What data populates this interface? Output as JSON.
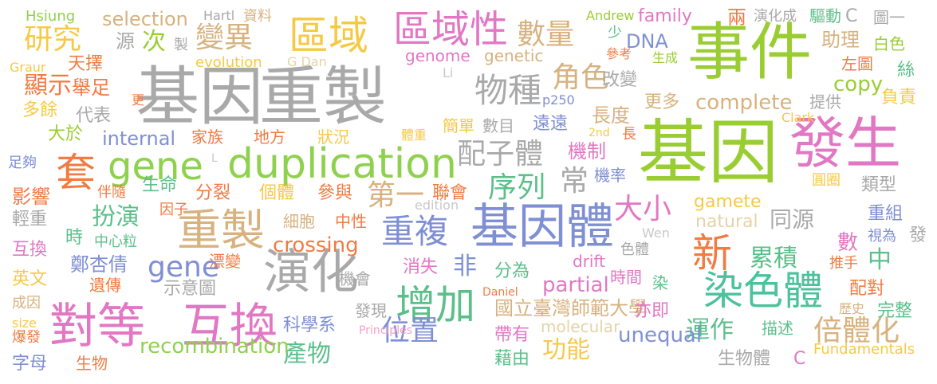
{
  "words": [
    {
      "text": "基因",
      "color": "#a9a9a9"
    },
    {
      "text": "重製",
      "color": "#a9a9a9"
    },
    {
      "text": "基因",
      "color": "#9acd32"
    },
    {
      "text": "發生",
      "color": "#e277c4"
    },
    {
      "text": "事件",
      "color": "#9acd32"
    },
    {
      "text": "gene",
      "color": "#8fd14f"
    },
    {
      "text": "duplication",
      "color": "#8fd14f"
    },
    {
      "text": "對等",
      "color": "#e277c4"
    },
    {
      "text": "互換",
      "color": "#e277c4"
    },
    {
      "text": "演化",
      "color": "#a9a9a9"
    },
    {
      "text": "重製",
      "color": "#d7b27f"
    },
    {
      "text": "基因體",
      "color": "#7f8fd4"
    },
    {
      "text": "染色體",
      "color": "#4cc29c"
    },
    {
      "text": "區域",
      "color": "#f6c945"
    },
    {
      "text": "區域性",
      "color": "#e277c4"
    },
    {
      "text": "增加",
      "color": "#5bbf8a"
    },
    {
      "text": "套",
      "color": "#f07b43"
    },
    {
      "text": "新",
      "color": "#f07b43"
    },
    {
      "text": "物種",
      "color": "#a9a9a9"
    },
    {
      "text": "研究",
      "color": "#f6c945"
    },
    {
      "text": "變異",
      "color": "#d7b27f"
    },
    {
      "text": "數量",
      "color": "#d7b27f"
    },
    {
      "text": "顯示",
      "color": "#f07b43"
    },
    {
      "text": "重複",
      "color": "#7f8fd4"
    },
    {
      "text": "配子體",
      "color": "#a9a9a9"
    },
    {
      "text": "第一",
      "color": "#d7b27f"
    },
    {
      "text": "序列",
      "color": "#5bbf8a"
    },
    {
      "text": "扮演",
      "color": "#5bbf8a"
    },
    {
      "text": "gene",
      "color": "#7f8fd4"
    },
    {
      "text": "角色",
      "color": "#d7b27f"
    },
    {
      "text": "累積",
      "color": "#5bbf8a"
    },
    {
      "text": "大小",
      "color": "#e277c4"
    },
    {
      "text": "倍體化",
      "color": "#d7b27f"
    },
    {
      "text": "國立臺灣師範大學",
      "color": "#d7b27f"
    },
    {
      "text": "運作",
      "color": "#5bbf8a"
    },
    {
      "text": "功能",
      "color": "#f6c945"
    },
    {
      "text": "位置",
      "color": "#7f8fd4"
    },
    {
      "text": "產物",
      "color": "#5bbf8a"
    },
    {
      "text": "recombination",
      "color": "#8fd14f"
    },
    {
      "text": "unequal",
      "color": "#7f8fd4"
    },
    {
      "text": "crossing",
      "color": "#f07b43"
    },
    {
      "text": "partial",
      "color": "#e277c4"
    },
    {
      "text": "complete",
      "color": "#d7b27f"
    },
    {
      "text": "internal",
      "color": "#7f8fd4"
    },
    {
      "text": "copy",
      "color": "#9acd32"
    },
    {
      "text": "DNA",
      "color": "#7f8fd4"
    },
    {
      "text": "selection",
      "color": "#d7b27f"
    },
    {
      "text": "family",
      "color": "#e277c4"
    },
    {
      "text": "genome",
      "color": "#e277c4"
    },
    {
      "text": "genetic",
      "color": "#d7b27f"
    },
    {
      "text": "gamete",
      "color": "#f6c945"
    },
    {
      "text": "natural",
      "color": "#e6d3a8"
    },
    {
      "text": "Fundamentals",
      "color": "#f6c945"
    },
    {
      "text": "molecular",
      "color": "#e6d3a8"
    },
    {
      "text": "Principles",
      "color": "#f5a0c8"
    },
    {
      "text": "evolution",
      "color": "#f6c945"
    },
    {
      "text": "edition",
      "color": "#c8c8c8"
    },
    {
      "text": "drift",
      "color": "#e277c4"
    },
    {
      "text": "Hsiung",
      "color": "#8fd14f"
    },
    {
      "text": "Hartl",
      "color": "#a9a9a9"
    },
    {
      "text": "資料",
      "color": "#d7b27f"
    },
    {
      "text": "Andrew",
      "color": "#9acd32"
    },
    {
      "text": "兩",
      "color": "#f07b43"
    },
    {
      "text": "演化成",
      "color": "#a9a9a9"
    },
    {
      "text": "驅動",
      "color": "#5bbf8a"
    },
    {
      "text": "C",
      "color": "#a9a9a9"
    },
    {
      "text": "圖一",
      "color": "#a9a9a9"
    },
    {
      "text": "助理",
      "color": "#d7b27f"
    },
    {
      "text": "白色",
      "color": "#9acd32"
    },
    {
      "text": "左圖",
      "color": "#f07b43"
    },
    {
      "text": "絲",
      "color": "#5bbf8a"
    },
    {
      "text": "提供",
      "color": "#a9a9a9"
    },
    {
      "text": "負責",
      "color": "#f6c945"
    },
    {
      "text": "源",
      "color": "#a9a9a9"
    },
    {
      "text": "次",
      "color": "#9acd32"
    },
    {
      "text": "製",
      "color": "#a9a9a9"
    },
    {
      "text": "天擇",
      "color": "#f07b43"
    },
    {
      "text": "舉足",
      "color": "#f07b43"
    },
    {
      "text": "多餘",
      "color": "#f6c945"
    },
    {
      "text": "代表",
      "color": "#a9a9a9"
    },
    {
      "text": "更",
      "color": "#f07b43"
    },
    {
      "text": "Graur",
      "color": "#f6c945"
    },
    {
      "text": "G Dan",
      "color": "#e6d3a8"
    },
    {
      "text": "Li",
      "color": "#c8c8c8"
    },
    {
      "text": "p250",
      "color": "#7f8fd4"
    },
    {
      "text": "Clark",
      "color": "#f6c945"
    },
    {
      "text": "少",
      "color": "#5bbf8a"
    },
    {
      "text": "參考",
      "color": "#f07b43"
    },
    {
      "text": "生成",
      "color": "#9acd32"
    },
    {
      "text": "改變",
      "color": "#a9a9a9"
    },
    {
      "text": "更多",
      "color": "#d7b27f"
    },
    {
      "text": "長度",
      "color": "#d7b27f"
    },
    {
      "text": "簡單",
      "color": "#f6c945"
    },
    {
      "text": "數目",
      "color": "#a9a9a9"
    },
    {
      "text": "遠遠",
      "color": "#7f8fd4"
    },
    {
      "text": "2nd",
      "color": "#f6c945"
    },
    {
      "text": "長",
      "color": "#f07b43"
    },
    {
      "text": "機制",
      "color": "#e277c4"
    },
    {
      "text": "大於",
      "color": "#9acd32"
    },
    {
      "text": "家族",
      "color": "#f07b43"
    },
    {
      "text": "地方",
      "color": "#f07b43"
    },
    {
      "text": "狀況",
      "color": "#f6c945"
    },
    {
      "text": "體重",
      "color": "#f6c945"
    },
    {
      "text": "足夠",
      "color": "#7f8fd4"
    },
    {
      "text": "L",
      "color": "#c8c8c8"
    },
    {
      "text": "影響",
      "color": "#f07b43"
    },
    {
      "text": "伴隨",
      "color": "#f07b43"
    },
    {
      "text": "生命",
      "color": "#5bbf8a"
    },
    {
      "text": "分裂",
      "color": "#f07b43"
    },
    {
      "text": "個體",
      "color": "#f6c945"
    },
    {
      "text": "參與",
      "color": "#f07b43"
    },
    {
      "text": "聯會",
      "color": "#f07b43"
    },
    {
      "text": "常",
      "color": "#a9a9a9"
    },
    {
      "text": "機率",
      "color": "#7f8fd4"
    },
    {
      "text": "圓圈",
      "color": "#f6c945"
    },
    {
      "text": "類型",
      "color": "#a9a9a9"
    },
    {
      "text": "因子",
      "color": "#f07b43"
    },
    {
      "text": "輕重",
      "color": "#a9a9a9"
    },
    {
      "text": "細胞",
      "color": "#d7b27f"
    },
    {
      "text": "中性",
      "color": "#f07b43"
    },
    {
      "text": "同源",
      "color": "#a9a9a9"
    },
    {
      "text": "重組",
      "color": "#7f8fd4"
    },
    {
      "text": "時",
      "color": "#5bbf8a"
    },
    {
      "text": "中心粒",
      "color": "#5bbf8a"
    },
    {
      "text": "Wen",
      "color": "#c8c8c8"
    },
    {
      "text": "視為",
      "color": "#7f8fd4"
    },
    {
      "text": "發",
      "color": "#a9a9a9"
    },
    {
      "text": "互換",
      "color": "#e277c4"
    },
    {
      "text": "鄭杏倩",
      "color": "#7f8fd4"
    },
    {
      "text": "漂變",
      "color": "#f07b43"
    },
    {
      "text": "消失",
      "color": "#e277c4"
    },
    {
      "text": "非",
      "color": "#7f8fd4"
    },
    {
      "text": "色體",
      "color": "#a9a9a9"
    },
    {
      "text": "數",
      "color": "#e277c4"
    },
    {
      "text": "中",
      "color": "#5bbf8a"
    },
    {
      "text": "推手",
      "color": "#f07b43"
    },
    {
      "text": "英文",
      "color": "#f6c945"
    },
    {
      "text": "遺傳",
      "color": "#f07b43"
    },
    {
      "text": "示意圖",
      "color": "#a9a9a9"
    },
    {
      "text": "機會",
      "color": "#a9a9a9"
    },
    {
      "text": "分為",
      "color": "#5bbf8a"
    },
    {
      "text": "時間",
      "color": "#e277c4"
    },
    {
      "text": "染",
      "color": "#5bbf8a"
    },
    {
      "text": "配對",
      "color": "#f07b43"
    },
    {
      "text": "成因",
      "color": "#d7b27f"
    },
    {
      "text": "發現",
      "color": "#a9a9a9"
    },
    {
      "text": "Daniel",
      "color": "#f07b43"
    },
    {
      "text": "完整",
      "color": "#5bbf8a"
    },
    {
      "text": "歷史",
      "color": "#d7b27f"
    },
    {
      "text": "size",
      "color": "#f6c945"
    },
    {
      "text": "爆發",
      "color": "#f07b43"
    },
    {
      "text": "科學系",
      "color": "#7f8fd4"
    },
    {
      "text": "帶有",
      "color": "#e277c4"
    },
    {
      "text": "亦即",
      "color": "#e277c4"
    },
    {
      "text": "描述",
      "color": "#5bbf8a"
    },
    {
      "text": "字母",
      "color": "#7f8fd4"
    },
    {
      "text": "生物",
      "color": "#f07b43"
    },
    {
      "text": "藉由",
      "color": "#5bbf8a"
    },
    {
      "text": "生物體",
      "color": "#a9a9a9"
    },
    {
      "text": "C",
      "color": "#e277c4"
    }
  ]
}
